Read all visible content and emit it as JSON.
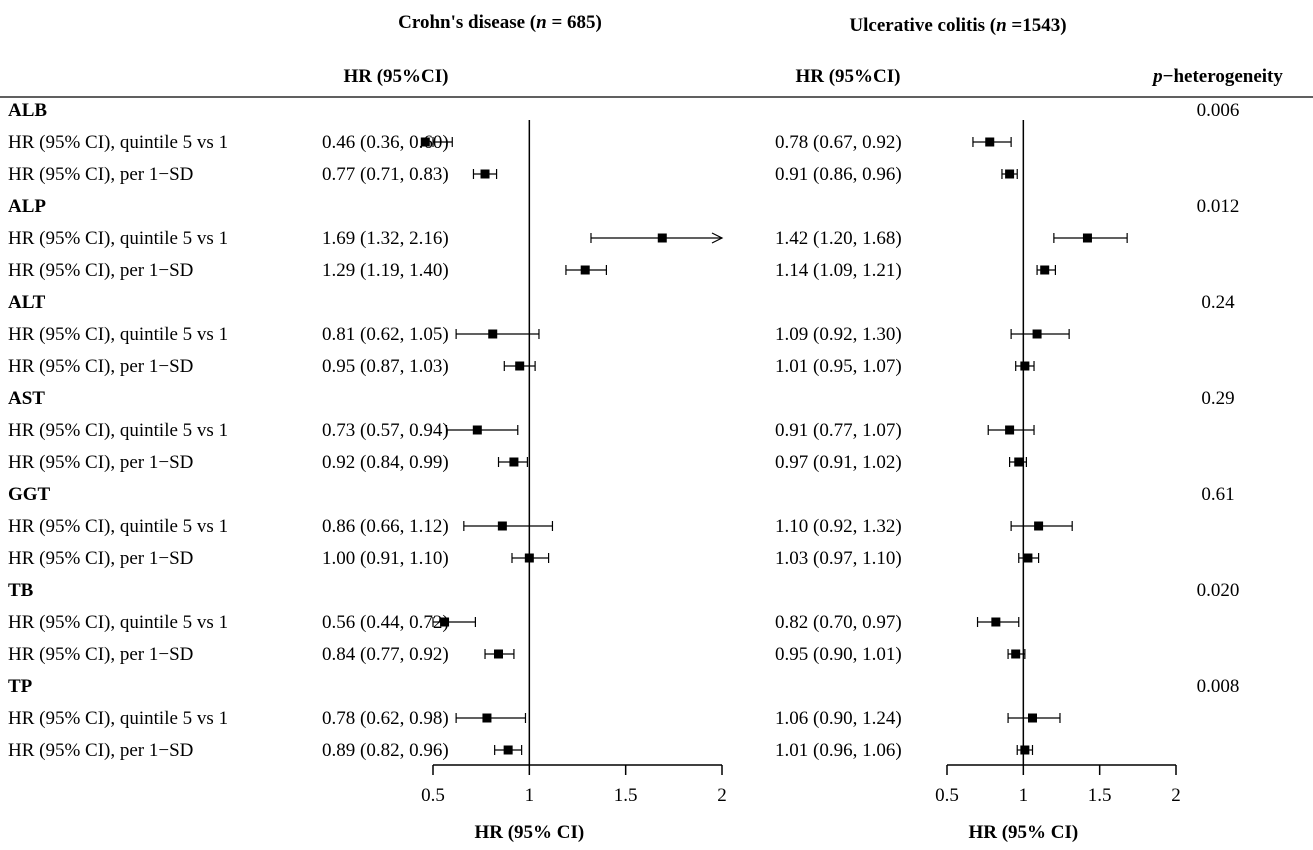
{
  "panels": [
    {
      "title_pre": "Crohn's disease (",
      "title_n": "n",
      "title_post": " = 685)"
    },
    {
      "title_pre": "Ulcerative colitis (",
      "title_n": "n",
      "title_post": " =1543)"
    }
  ],
  "col_header_hr": "HR (95%CI)",
  "p_header_italic": "p",
  "p_header_rest": "−heterogeneity",
  "xlabel": "HR (95% CI)",
  "chart_data": {
    "type": "forest",
    "xlim": [
      0.5,
      2
    ],
    "xticks": [
      "0.5",
      "1",
      "1.5",
      "2"
    ],
    "reference_line": 1,
    "groups": [
      {
        "name": "ALB",
        "p": "0.006",
        "rows": [
          {
            "label": "HR (95% CI), quintile 5 vs 1",
            "cd": {
              "text": "0.46 (0.36, 0.60)",
              "hr": 0.46,
              "lo": 0.36,
              "hi": 0.6
            },
            "uc": {
              "text": "0.78 (0.67, 0.92)",
              "hr": 0.78,
              "lo": 0.67,
              "hi": 0.92
            }
          },
          {
            "label": "HR (95% CI), per 1−SD",
            "cd": {
              "text": "0.77 (0.71, 0.83)",
              "hr": 0.77,
              "lo": 0.71,
              "hi": 0.83
            },
            "uc": {
              "text": "0.91 (0.86, 0.96)",
              "hr": 0.91,
              "lo": 0.86,
              "hi": 0.96
            }
          }
        ]
      },
      {
        "name": "ALP",
        "p": "0.012",
        "rows": [
          {
            "label": "HR (95% CI), quintile 5 vs 1",
            "cd": {
              "text": "1.69 (1.32, 2.16)",
              "hr": 1.69,
              "lo": 1.32,
              "hi": 2.16
            },
            "uc": {
              "text": "1.42 (1.20, 1.68)",
              "hr": 1.42,
              "lo": 1.2,
              "hi": 1.68
            }
          },
          {
            "label": "HR (95% CI), per 1−SD",
            "cd": {
              "text": "1.29 (1.19, 1.40)",
              "hr": 1.29,
              "lo": 1.19,
              "hi": 1.4
            },
            "uc": {
              "text": "1.14 (1.09, 1.21)",
              "hr": 1.14,
              "lo": 1.09,
              "hi": 1.21
            }
          }
        ]
      },
      {
        "name": "ALT",
        "p": "0.24",
        "rows": [
          {
            "label": "HR (95% CI), quintile 5 vs 1",
            "cd": {
              "text": "0.81 (0.62, 1.05)",
              "hr": 0.81,
              "lo": 0.62,
              "hi": 1.05
            },
            "uc": {
              "text": "1.09 (0.92, 1.30)",
              "hr": 1.09,
              "lo": 0.92,
              "hi": 1.3
            }
          },
          {
            "label": "HR (95% CI), per 1−SD",
            "cd": {
              "text": "0.95 (0.87, 1.03)",
              "hr": 0.95,
              "lo": 0.87,
              "hi": 1.03
            },
            "uc": {
              "text": "1.01 (0.95, 1.07)",
              "hr": 1.01,
              "lo": 0.95,
              "hi": 1.07
            }
          }
        ]
      },
      {
        "name": "AST",
        "p": "0.29",
        "rows": [
          {
            "label": "HR (95% CI), quintile 5 vs 1",
            "cd": {
              "text": "0.73 (0.57, 0.94)",
              "hr": 0.73,
              "lo": 0.57,
              "hi": 0.94
            },
            "uc": {
              "text": "0.91 (0.77, 1.07)",
              "hr": 0.91,
              "lo": 0.77,
              "hi": 1.07
            }
          },
          {
            "label": "HR (95% CI), per 1−SD",
            "cd": {
              "text": "0.92 (0.84, 0.99)",
              "hr": 0.92,
              "lo": 0.84,
              "hi": 0.99
            },
            "uc": {
              "text": "0.97 (0.91, 1.02)",
              "hr": 0.97,
              "lo": 0.91,
              "hi": 1.02
            }
          }
        ]
      },
      {
        "name": "GGT",
        "p": "0.61",
        "rows": [
          {
            "label": "HR (95% CI), quintile 5 vs 1",
            "cd": {
              "text": "0.86 (0.66, 1.12)",
              "hr": 0.86,
              "lo": 0.66,
              "hi": 1.12
            },
            "uc": {
              "text": "1.10 (0.92, 1.32)",
              "hr": 1.1,
              "lo": 0.92,
              "hi": 1.32
            }
          },
          {
            "label": "HR (95% CI), per 1−SD",
            "cd": {
              "text": "1.00 (0.91, 1.10)",
              "hr": 1.0,
              "lo": 0.91,
              "hi": 1.1
            },
            "uc": {
              "text": "1.03 (0.97, 1.10)",
              "hr": 1.03,
              "lo": 0.97,
              "hi": 1.1
            }
          }
        ]
      },
      {
        "name": "TB",
        "p": "0.020",
        "rows": [
          {
            "label": "HR (95% CI), quintile 5 vs 1",
            "cd": {
              "text": "0.56 (0.44, 0.72)",
              "hr": 0.56,
              "lo": 0.44,
              "hi": 0.72
            },
            "uc": {
              "text": "0.82 (0.70, 0.97)",
              "hr": 0.82,
              "lo": 0.7,
              "hi": 0.97
            }
          },
          {
            "label": "HR (95% CI), per 1−SD",
            "cd": {
              "text": "0.84 (0.77, 0.92)",
              "hr": 0.84,
              "lo": 0.77,
              "hi": 0.92
            },
            "uc": {
              "text": "0.95 (0.90, 1.01)",
              "hr": 0.95,
              "lo": 0.9,
              "hi": 1.01
            }
          }
        ]
      },
      {
        "name": "TP",
        "p": "0.008",
        "rows": [
          {
            "label": "HR (95% CI), quintile 5 vs 1",
            "cd": {
              "text": "0.78 (0.62, 0.98)",
              "hr": 0.78,
              "lo": 0.62,
              "hi": 0.98
            },
            "uc": {
              "text": "1.06 (0.90, 1.24)",
              "hr": 1.06,
              "lo": 0.9,
              "hi": 1.24
            }
          },
          {
            "label": "HR (95% CI), per 1−SD",
            "cd": {
              "text": "0.89 (0.82, 0.96)",
              "hr": 0.89,
              "lo": 0.82,
              "hi": 0.96
            },
            "uc": {
              "text": "1.01 (0.96, 1.06)",
              "hr": 1.01,
              "lo": 0.96,
              "hi": 1.06
            }
          }
        ]
      }
    ]
  }
}
